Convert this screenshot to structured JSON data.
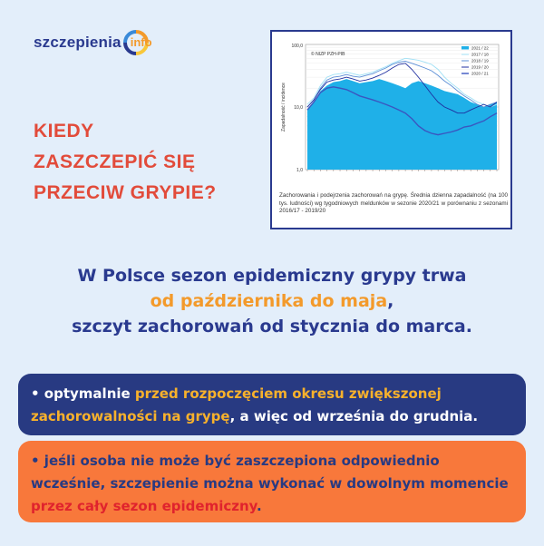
{
  "logo": {
    "brand": "szczepienia",
    "suffix": "info"
  },
  "headline": {
    "lines": [
      "KIEDY",
      "ZASZCZEPIĆ SIĘ",
      "PRZECIW GRYPIE?"
    ]
  },
  "chart": {
    "source_label": "© NIZP PZH-PIB",
    "ylabel": "Zapadalność / incidence",
    "y_ticks": [
      "100,0",
      "10,0",
      "1,0"
    ],
    "legend": [
      "2021 / 22",
      "2017 / 18",
      "2018 / 19",
      "2019 / 20",
      "2020 / 21"
    ],
    "caption": "Zachorowania i podejrzenia zachorowań na grypę. Średnia dzienna zapadalność (na 100 tys. ludności) wg tygodniowych meldunków w sezonie 2020/21 w porównaniu z sezonami 2016/17 - 2019/20",
    "colors": {
      "fill": "#1fb0e8",
      "s2017": "#9fe0f5",
      "s2018": "#5c8fd6",
      "s2019": "#1f2fa0",
      "s2020": "#3a56c0"
    }
  },
  "chart_data": {
    "type": "area",
    "ylabel": "Zapadalność / incidence",
    "yscale": "log",
    "ylim": [
      1,
      100
    ],
    "y_ticks": [
      1,
      10,
      100
    ],
    "legend_position": "top-right",
    "series": [
      {
        "name": "2021 / 22",
        "values": [
          9,
          12,
          18,
          22,
          25,
          26,
          28,
          26,
          24,
          25,
          26,
          28,
          26,
          24,
          22,
          20,
          24,
          26,
          24,
          22,
          20,
          18,
          17,
          16,
          14,
          12,
          11,
          10,
          11,
          12
        ]
      },
      {
        "name": "2017 / 18",
        "values": [
          11,
          14,
          22,
          30,
          33,
          34,
          36,
          34,
          32,
          34,
          36,
          40,
          44,
          50,
          55,
          60,
          58,
          56,
          52,
          48,
          40,
          30,
          24,
          20,
          16,
          14,
          12,
          11,
          10,
          11
        ]
      },
      {
        "name": "2018 / 19",
        "values": [
          10,
          13,
          20,
          27,
          30,
          31,
          33,
          31,
          30,
          32,
          34,
          38,
          42,
          48,
          52,
          54,
          50,
          46,
          42,
          38,
          32,
          26,
          22,
          18,
          15,
          13,
          11,
          10,
          11,
          12
        ]
      },
      {
        "name": "2019 / 20",
        "values": [
          10,
          13,
          19,
          25,
          27,
          28,
          30,
          28,
          26,
          27,
          29,
          32,
          36,
          42,
          48,
          50,
          40,
          30,
          22,
          16,
          12,
          10,
          9,
          8,
          8,
          9,
          10,
          11,
          10,
          12
        ]
      },
      {
        "name": "2020 / 21",
        "values": [
          9,
          12,
          17,
          20,
          21,
          20,
          19,
          17,
          15,
          14,
          13,
          12,
          11,
          10,
          9,
          8,
          6.5,
          5,
          4.2,
          3.8,
          3.6,
          3.8,
          4,
          4.3,
          4.8,
          5,
          5.5,
          6,
          7,
          8
        ]
      }
    ]
  },
  "main": {
    "line1": "W Polsce sezon epidemiczny grypy trwa",
    "line2": "od października do maja",
    "line2_suffix": ",",
    "line3": "szczyt zachorowań od stycznia do marca."
  },
  "box1": {
    "part1": "• optymalnie ",
    "highlight": "przed rozpoczęciem okresu zwiększonej zachorowalności na grypę",
    "part2": ", a więc od września do grudnia."
  },
  "box2": {
    "part1": "• jeśli osoba nie może być zaszczepiona odpowiednio wcześnie, szczepienie można wykonać w dowolnym momencie ",
    "highlight": "przez cały sezon epidemiczny",
    "part2": "."
  }
}
